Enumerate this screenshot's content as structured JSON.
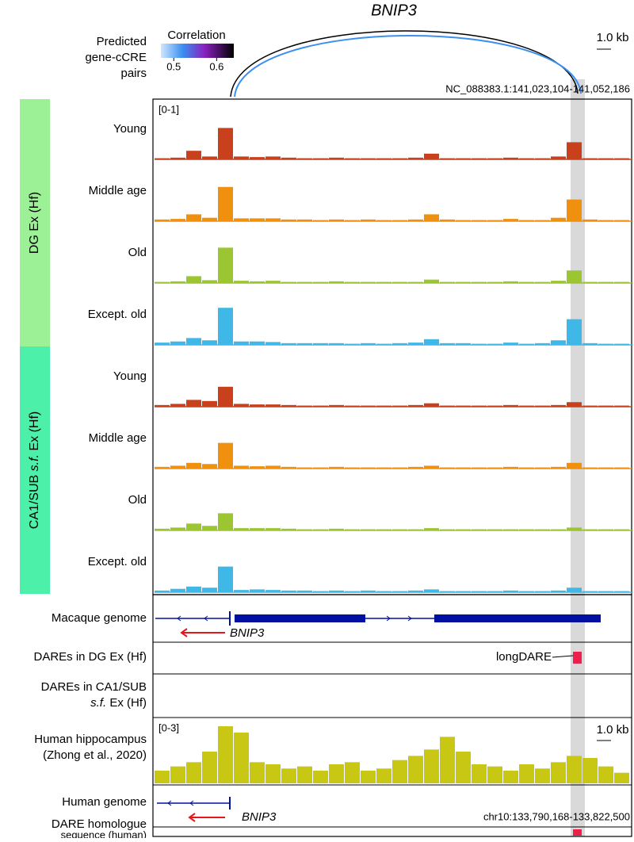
{
  "title": "BNIP3",
  "arc_panel": {
    "label_lines": [
      "Predicted",
      "gene-cCRE",
      "pairs"
    ],
    "legend_title": "Correlation",
    "legend_ticks": [
      0.5,
      0.6
    ],
    "colorbar_lim": [
      0.47,
      0.64
    ],
    "scale_bar": "1.0 kb",
    "coordinates": "NC_088383.1:141,023,104-141,052,186"
  },
  "tracks": {
    "range_label": "[0-1]",
    "ylim": [
      0,
      1
    ],
    "groups": [
      {
        "label_parts": [
          "DG Ex (Hf)"
        ],
        "color": "#9cf095",
        "rows": [
          {
            "name": "Young",
            "color": "#c8401c",
            "values": [
              0.02,
              0.03,
              0.15,
              0.05,
              0.55,
              0.05,
              0.04,
              0.05,
              0.03,
              0.02,
              0.02,
              0.03,
              0.02,
              0.02,
              0.02,
              0.02,
              0.03,
              0.1,
              0.02,
              0.02,
              0.02,
              0.02,
              0.03,
              0.02,
              0.02,
              0.05,
              0.3,
              0.02,
              0.02,
              0.02
            ]
          },
          {
            "name": "Middle age",
            "color": "#f0900f",
            "values": [
              0.03,
              0.04,
              0.12,
              0.06,
              0.6,
              0.05,
              0.05,
              0.05,
              0.03,
              0.03,
              0.02,
              0.03,
              0.02,
              0.03,
              0.02,
              0.02,
              0.03,
              0.12,
              0.03,
              0.02,
              0.02,
              0.02,
              0.04,
              0.02,
              0.02,
              0.06,
              0.38,
              0.03,
              0.02,
              0.02
            ]
          },
          {
            "name": "Old",
            "color": "#9bc531",
            "values": [
              0.02,
              0.03,
              0.12,
              0.05,
              0.62,
              0.04,
              0.03,
              0.04,
              0.02,
              0.02,
              0.02,
              0.03,
              0.02,
              0.02,
              0.02,
              0.02,
              0.02,
              0.06,
              0.02,
              0.02,
              0.02,
              0.02,
              0.03,
              0.02,
              0.02,
              0.04,
              0.22,
              0.02,
              0.02,
              0.02
            ]
          },
          {
            "name": "Except. old",
            "color": "#3fb8e8",
            "values": [
              0.04,
              0.06,
              0.12,
              0.08,
              0.65,
              0.06,
              0.06,
              0.05,
              0.03,
              0.03,
              0.03,
              0.03,
              0.02,
              0.03,
              0.02,
              0.03,
              0.04,
              0.1,
              0.03,
              0.03,
              0.02,
              0.02,
              0.04,
              0.02,
              0.03,
              0.08,
              0.45,
              0.03,
              0.02,
              0.02
            ]
          }
        ]
      },
      {
        "label_parts": [
          "CA1/SUB ",
          "s.f.",
          " Ex (Hf)"
        ],
        "color": "#4df0a8",
        "rows": [
          {
            "name": "Young",
            "color": "#c8401c",
            "values": [
              0.03,
              0.05,
              0.12,
              0.1,
              0.35,
              0.05,
              0.04,
              0.04,
              0.03,
              0.02,
              0.02,
              0.03,
              0.02,
              0.02,
              0.02,
              0.02,
              0.03,
              0.06,
              0.02,
              0.02,
              0.02,
              0.02,
              0.03,
              0.02,
              0.02,
              0.03,
              0.08,
              0.02,
              0.02,
              0.02
            ]
          },
          {
            "name": "Middle age",
            "color": "#f0900f",
            "values": [
              0.03,
              0.05,
              0.1,
              0.08,
              0.45,
              0.05,
              0.04,
              0.05,
              0.03,
              0.02,
              0.02,
              0.03,
              0.02,
              0.02,
              0.02,
              0.02,
              0.03,
              0.05,
              0.02,
              0.02,
              0.02,
              0.02,
              0.03,
              0.02,
              0.02,
              0.03,
              0.1,
              0.02,
              0.02,
              0.02
            ]
          },
          {
            "name": "Old",
            "color": "#9bc531",
            "values": [
              0.03,
              0.05,
              0.12,
              0.08,
              0.3,
              0.04,
              0.04,
              0.04,
              0.03,
              0.02,
              0.02,
              0.03,
              0.02,
              0.02,
              0.02,
              0.02,
              0.02,
              0.04,
              0.02,
              0.02,
              0.02,
              0.02,
              0.02,
              0.02,
              0.02,
              0.02,
              0.05,
              0.02,
              0.02,
              0.02
            ]
          },
          {
            "name": "Except. old",
            "color": "#3fb8e8",
            "values": [
              0.03,
              0.06,
              0.1,
              0.08,
              0.45,
              0.04,
              0.05,
              0.04,
              0.03,
              0.03,
              0.02,
              0.03,
              0.02,
              0.03,
              0.02,
              0.02,
              0.03,
              0.05,
              0.02,
              0.02,
              0.02,
              0.02,
              0.03,
              0.02,
              0.02,
              0.03,
              0.08,
              0.02,
              0.02,
              0.02
            ]
          }
        ]
      }
    ]
  },
  "macaque_genome": {
    "label": "Macaque genome",
    "gene": "BNIP3"
  },
  "dares_dg": {
    "label": "DAREs in DG Ex (Hf)",
    "annotation": "longDARE"
  },
  "dares_ca1": {
    "label_parts": [
      "DAREs in CA1/SUB",
      "s.f.",
      " Ex (Hf)"
    ]
  },
  "human_hippocampus": {
    "label_lines": [
      "Human hippocampus",
      "(Zhong et al., 2020)"
    ],
    "range_label": "[0-3]",
    "ylim": [
      0,
      3
    ],
    "scale_bar": "1.0 kb",
    "color": "#c8c814",
    "values": [
      0.6,
      0.8,
      1.0,
      1.5,
      2.7,
      2.4,
      1.0,
      0.9,
      0.7,
      0.8,
      0.6,
      0.9,
      1.0,
      0.6,
      0.7,
      1.1,
      1.3,
      1.6,
      2.2,
      1.5,
      0.9,
      0.8,
      0.6,
      0.9,
      0.7,
      1.0,
      1.3,
      1.2,
      0.8,
      0.5
    ]
  },
  "human_genome": {
    "label": "Human genome",
    "gene": "BNIP3",
    "coordinates": "chr10:133,790,168-133,822,500"
  },
  "dare_homologue": {
    "label_lines": [
      "DARE homologue",
      "sequence (human)"
    ]
  }
}
